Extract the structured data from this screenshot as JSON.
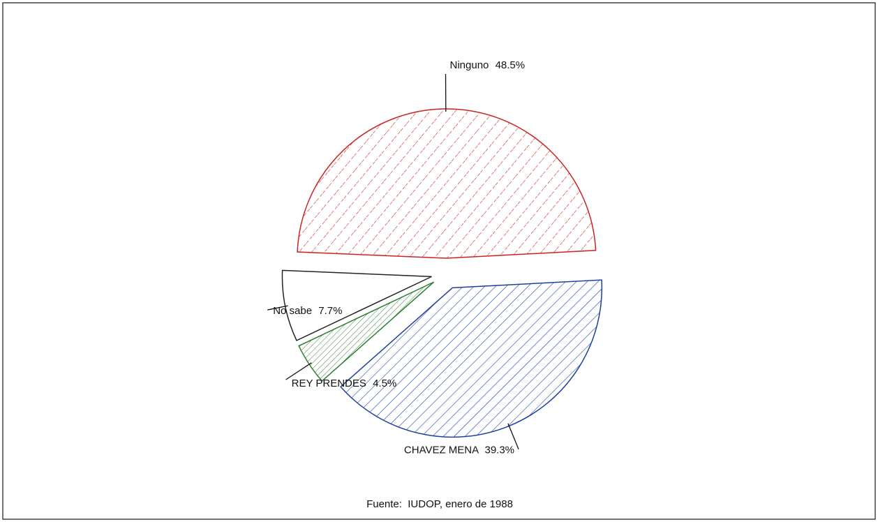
{
  "chart_data": {
    "type": "pie",
    "slices": [
      {
        "label": "Ninguno",
        "value_label": "48.5%",
        "value": 48.5,
        "color": "#cc2222",
        "hatch": "dashed-diagonal"
      },
      {
        "label": "No sabe",
        "value_label": "7.7%",
        "value": 7.7,
        "color": "#222222",
        "hatch": "none"
      },
      {
        "label": "REY PRENDES",
        "value_label": "4.5%",
        "value": 4.5,
        "color": "#2e7d32",
        "hatch": "diagonal"
      },
      {
        "label": "CHAVEZ MENA",
        "value_label": "39.3%",
        "value": 39.3,
        "color": "#1f3fa0",
        "hatch": "diagonal"
      }
    ],
    "exploded": true,
    "legend": "none",
    "source": "Fuente:  IUDOP, enero de 1988"
  }
}
